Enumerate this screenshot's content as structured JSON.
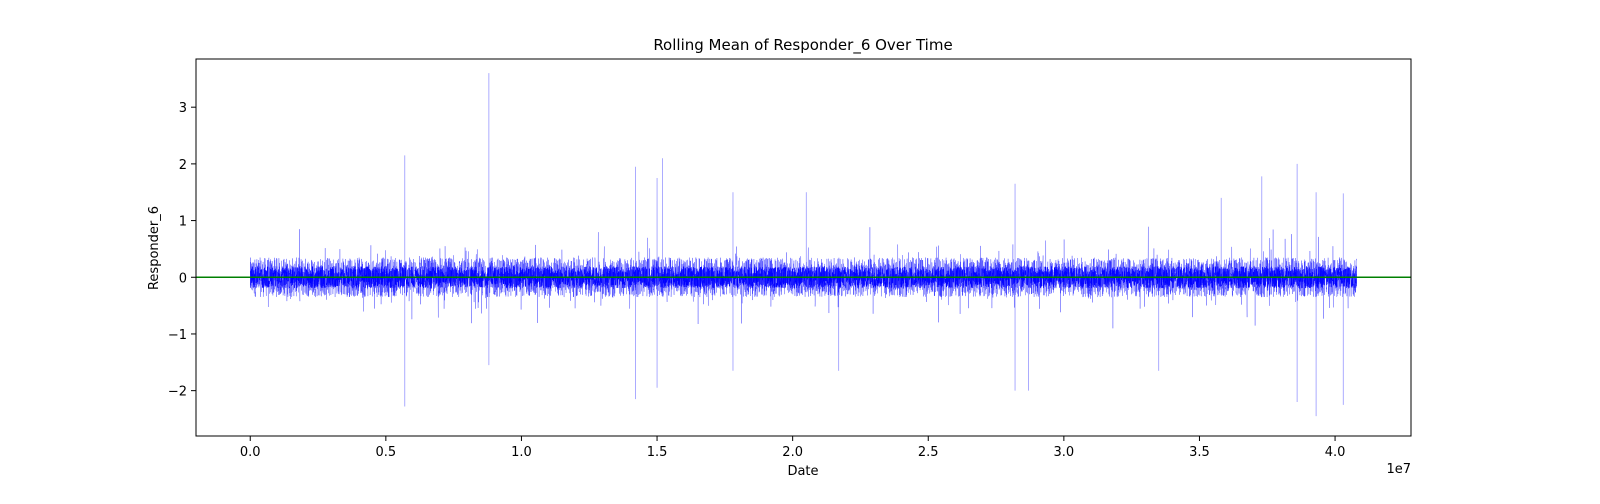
{
  "chart_data": {
    "type": "line",
    "title": "Rolling Mean of Responder_6 Over Time",
    "xlabel": "Date",
    "ylabel": "Responder_6",
    "x_offset_label": "1e7",
    "xlim": [
      -0.2,
      4.28
    ],
    "ylim": [
      -2.8,
      3.85
    ],
    "x_ticks": [
      0.0,
      0.5,
      1.0,
      1.5,
      2.0,
      2.5,
      3.0,
      3.5,
      4.0
    ],
    "x_tick_labels": [
      "0.0",
      "0.5",
      "1.0",
      "1.5",
      "2.0",
      "2.5",
      "3.0",
      "3.5",
      "4.0"
    ],
    "y_ticks": [
      -2,
      -1,
      0,
      1,
      2,
      3
    ],
    "y_tick_labels": [
      "−2",
      "−1",
      "0",
      "1",
      "2",
      "3"
    ],
    "grid": false,
    "legend": "none",
    "series": [
      {
        "color": "#0000ff",
        "x_range": [
          0.0,
          4.08
        ],
        "typical_amplitude": 0.35,
        "spikes": [
          {
            "x": 0.57,
            "y": 2.15
          },
          {
            "x": 0.57,
            "y": -2.28
          },
          {
            "x": 0.88,
            "y": 3.6
          },
          {
            "x": 0.88,
            "y": -1.55
          },
          {
            "x": 1.42,
            "y": 1.95
          },
          {
            "x": 1.42,
            "y": -2.15
          },
          {
            "x": 1.5,
            "y": 1.75
          },
          {
            "x": 1.5,
            "y": -1.95
          },
          {
            "x": 1.52,
            "y": 2.1
          },
          {
            "x": 1.78,
            "y": 1.5
          },
          {
            "x": 1.78,
            "y": -1.65
          },
          {
            "x": 2.05,
            "y": 1.5
          },
          {
            "x": 2.17,
            "y": -1.65
          },
          {
            "x": 2.82,
            "y": 1.65
          },
          {
            "x": 2.82,
            "y": -2.0
          },
          {
            "x": 2.87,
            "y": -2.0
          },
          {
            "x": 3.35,
            "y": -1.65
          },
          {
            "x": 3.58,
            "y": 1.4
          },
          {
            "x": 3.73,
            "y": 1.78
          },
          {
            "x": 3.86,
            "y": 2.0
          },
          {
            "x": 3.86,
            "y": -2.2
          },
          {
            "x": 3.93,
            "y": 1.5
          },
          {
            "x": 3.93,
            "y": -2.45
          },
          {
            "x": 4.03,
            "y": 1.48
          },
          {
            "x": 4.03,
            "y": -2.25
          }
        ]
      },
      {
        "color": "#008000",
        "values_constant": 0.0
      }
    ]
  }
}
